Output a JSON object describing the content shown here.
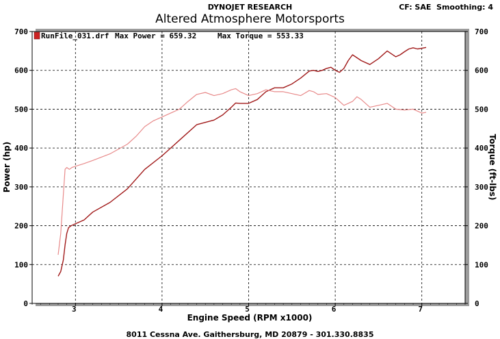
{
  "header": {
    "brand": "DYNOJET RESEARCH",
    "title": "Altered Atmosphere Motorsports",
    "settings": "CF: SAE  Smoothing: 4"
  },
  "footer": {
    "address": "8011 Cessna Ave. Gaithersburg, MD 20879 - 301.330.8835"
  },
  "colors": {
    "power": "#a01818",
    "torque": "#e88a8a",
    "grid": "#000000",
    "legend_swatch": "#cc2222"
  },
  "chart_data": {
    "type": "line",
    "legend": {
      "run": "RunFile_031.drf",
      "max_power": "Max Power = 659.32",
      "max_torque": "Max Torque = 553.33"
    },
    "xlabel": "Engine Speed (RPM x1000)",
    "ylabel_left": "Power (hp)",
    "ylabel_right": "Torque (ft-lbs)",
    "xlim": [
      2.5,
      7.5
    ],
    "ylim": [
      0,
      700
    ],
    "x_ticks": [
      "3",
      "4",
      "5",
      "6",
      "7"
    ],
    "y_ticks": [
      "0",
      "100",
      "200",
      "300",
      "400",
      "500",
      "600",
      "700"
    ],
    "grid": true,
    "series": [
      {
        "name": "Power",
        "x": [
          2.8,
          2.83,
          2.86,
          2.88,
          2.9,
          2.92,
          2.95,
          3.0,
          3.1,
          3.2,
          3.4,
          3.6,
          3.8,
          4.0,
          4.2,
          4.4,
          4.6,
          4.7,
          4.8,
          4.85,
          4.9,
          5.0,
          5.1,
          5.2,
          5.3,
          5.4,
          5.5,
          5.6,
          5.7,
          5.75,
          5.8,
          5.85,
          5.9,
          5.95,
          6.0,
          6.05,
          6.1,
          6.15,
          6.2,
          6.3,
          6.4,
          6.5,
          6.6,
          6.7,
          6.75,
          6.8,
          6.85,
          6.9,
          6.95,
          7.0,
          7.05
        ],
        "values": [
          70,
          82,
          112,
          150,
          180,
          195,
          200,
          205,
          215,
          235,
          260,
          295,
          345,
          380,
          420,
          460,
          472,
          485,
          505,
          516,
          515,
          515,
          525,
          545,
          555,
          555,
          565,
          580,
          598,
          600,
          597,
          600,
          605,
          608,
          600,
          595,
          605,
          625,
          640,
          625,
          615,
          630,
          650,
          635,
          640,
          648,
          655,
          658,
          655,
          657,
          659
        ]
      },
      {
        "name": "Torque",
        "x": [
          2.8,
          2.83,
          2.86,
          2.88,
          2.9,
          2.93,
          2.96,
          3.0,
          3.1,
          3.2,
          3.4,
          3.6,
          3.7,
          3.8,
          3.9,
          4.0,
          4.1,
          4.2,
          4.3,
          4.4,
          4.5,
          4.6,
          4.7,
          4.8,
          4.85,
          4.9,
          5.0,
          5.1,
          5.2,
          5.3,
          5.4,
          5.5,
          5.6,
          5.7,
          5.75,
          5.8,
          5.9,
          6.0,
          6.1,
          6.2,
          6.25,
          6.3,
          6.4,
          6.5,
          6.6,
          6.7,
          6.8,
          6.9,
          7.0,
          7.05
        ],
        "values": [
          125,
          180,
          280,
          345,
          350,
          345,
          350,
          353,
          360,
          368,
          385,
          410,
          430,
          455,
          470,
          480,
          490,
          500,
          520,
          538,
          543,
          535,
          540,
          550,
          553,
          545,
          535,
          540,
          550,
          545,
          545,
          540,
          535,
          548,
          545,
          538,
          540,
          530,
          510,
          520,
          532,
          525,
          505,
          510,
          515,
          500,
          498,
          500,
          490,
          492
        ]
      }
    ]
  }
}
